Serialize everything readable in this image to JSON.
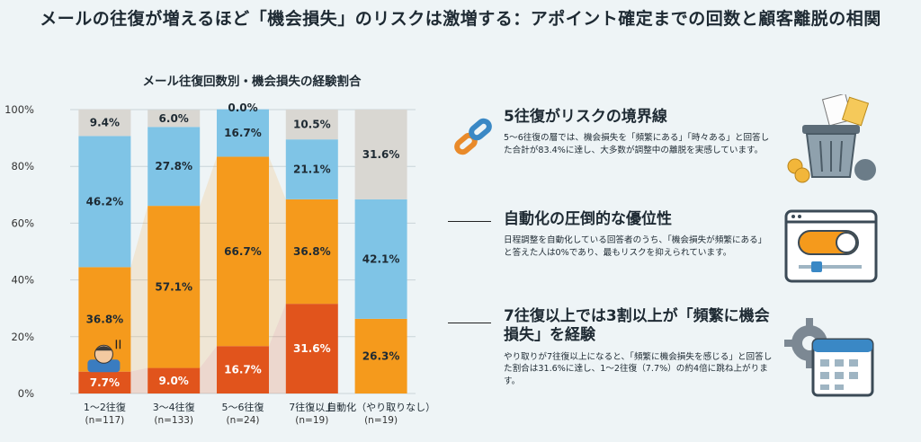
{
  "title": "メールの往復が増えるほど「機会損失」のリスクは激増する：アポイント確定までの回数と顧客離脱の相関",
  "colors": {
    "often": "#e1541c",
    "sometimes": "#f59a1c",
    "rarely": "#7fc4e6",
    "never": "#d9d7d2",
    "background": "#eef4f6"
  },
  "chart_data": {
    "type": "bar",
    "stacked": true,
    "title": "メール往復回数別・機会損失の経験割合",
    "ylim": [
      0,
      100
    ],
    "yticks": [
      "0%",
      "20%",
      "40%",
      "60%",
      "80%",
      "100%"
    ],
    "categories": [
      "1〜2往復",
      "3〜4往復",
      "5〜6往復",
      "7往復以上",
      "自動化（やり取りなし）"
    ],
    "sample_sizes": [
      "(n=117)",
      "(n=133)",
      "(n=24)",
      "(n=19)",
      "(n=19)"
    ],
    "series": [
      {
        "values": [
          7.7,
          9.0,
          16.7,
          31.6,
          0
        ],
        "labels": [
          "7.7%",
          "9.0%",
          "16.7%",
          "31.6%",
          "0%"
        ]
      },
      {
        "values": [
          36.8,
          57.1,
          66.7,
          36.8,
          26.3
        ],
        "labels": [
          "36.8%",
          "57.1%",
          "66.7%",
          "36.8%",
          "26.3%"
        ]
      },
      {
        "values": [
          46.2,
          27.8,
          16.7,
          21.1,
          42.1
        ],
        "labels": [
          "46.2%",
          "27.8%",
          "16.7%",
          "21.1%",
          "42.1%"
        ]
      },
      {
        "values": [
          9.4,
          6.0,
          0.0,
          10.5,
          31.6
        ],
        "labels": [
          "9.4%",
          "6.0%",
          "0.0%",
          "10.5%",
          "31.6%"
        ]
      }
    ]
  },
  "insights": [
    {
      "heading": "5往復がリスクの境界線",
      "body": "5〜6往復の層では、機会損失を「頻繁にある」「時々ある」と回答した合計が83.4%に達し、大多数が調整中の離脱を実感しています。",
      "icon": "broken-chain-icon"
    },
    {
      "heading": "自動化の圧倒的な優位性",
      "body": "日程調整を自動化している回答者のうち、「機会損失が頻繁にある」と答えた人は0%であり、最もリスクを抑えられています。",
      "icon": "toggle-settings-icon"
    },
    {
      "heading": "7往復以上では3割以上が「頻繁に機会損失」を経験",
      "body": "やり取りが7往復以上になると、「頻繁に機会損失を感じる」と回答した割合は31.6%に達し、1〜2往復（7.7%）の約4倍に跳ね上がります。",
      "icon": "calendar-gear-icon"
    }
  ],
  "decor_icons": [
    "trash-can-money-icon",
    "worried-person-icon"
  ]
}
